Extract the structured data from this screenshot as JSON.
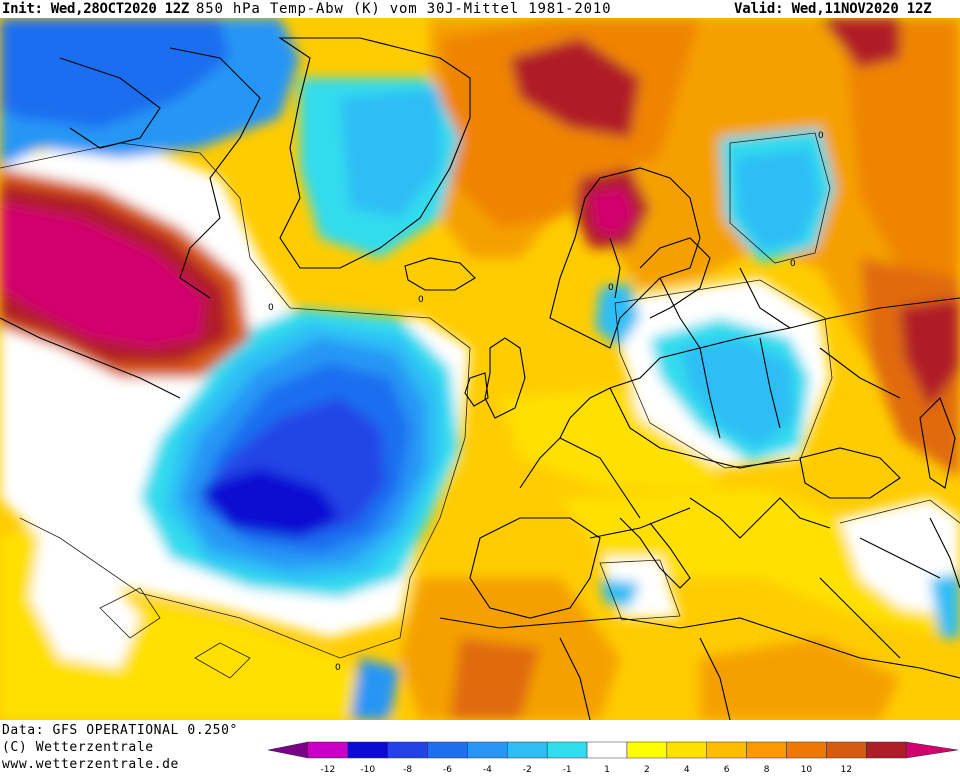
{
  "header": {
    "init": "Init: Wed,28OCT2020 12Z",
    "title": "850 hPa Temp-Abw (K) vom 30J-Mittel 1981-2010",
    "valid": "Valid: Wed,11NOV2020 12Z"
  },
  "footer": {
    "data_source": "Data: GFS OPERATIONAL 0.250°",
    "copyright": "(C) Wetterzentrale",
    "website": "www.wetterzentrale.de"
  },
  "legend": {
    "colors": [
      "#7a0085",
      "#c800c8",
      "#0a0ad2",
      "#2244e6",
      "#1e6ef0",
      "#2896f5",
      "#2ebef5",
      "#30dcee",
      "#ffffff",
      "#ffff00",
      "#ffe000",
      "#ffbc00",
      "#ff9800",
      "#f07800",
      "#d85a10",
      "#b01c28",
      "#d2006e"
    ],
    "tick_labels": [
      "-12",
      "-10",
      "-8",
      "-6",
      "-4",
      "-2",
      "-1",
      "1",
      "2",
      "4",
      "6",
      "8",
      "10",
      "12"
    ]
  },
  "map": {
    "zero_contour_label": "0"
  }
}
